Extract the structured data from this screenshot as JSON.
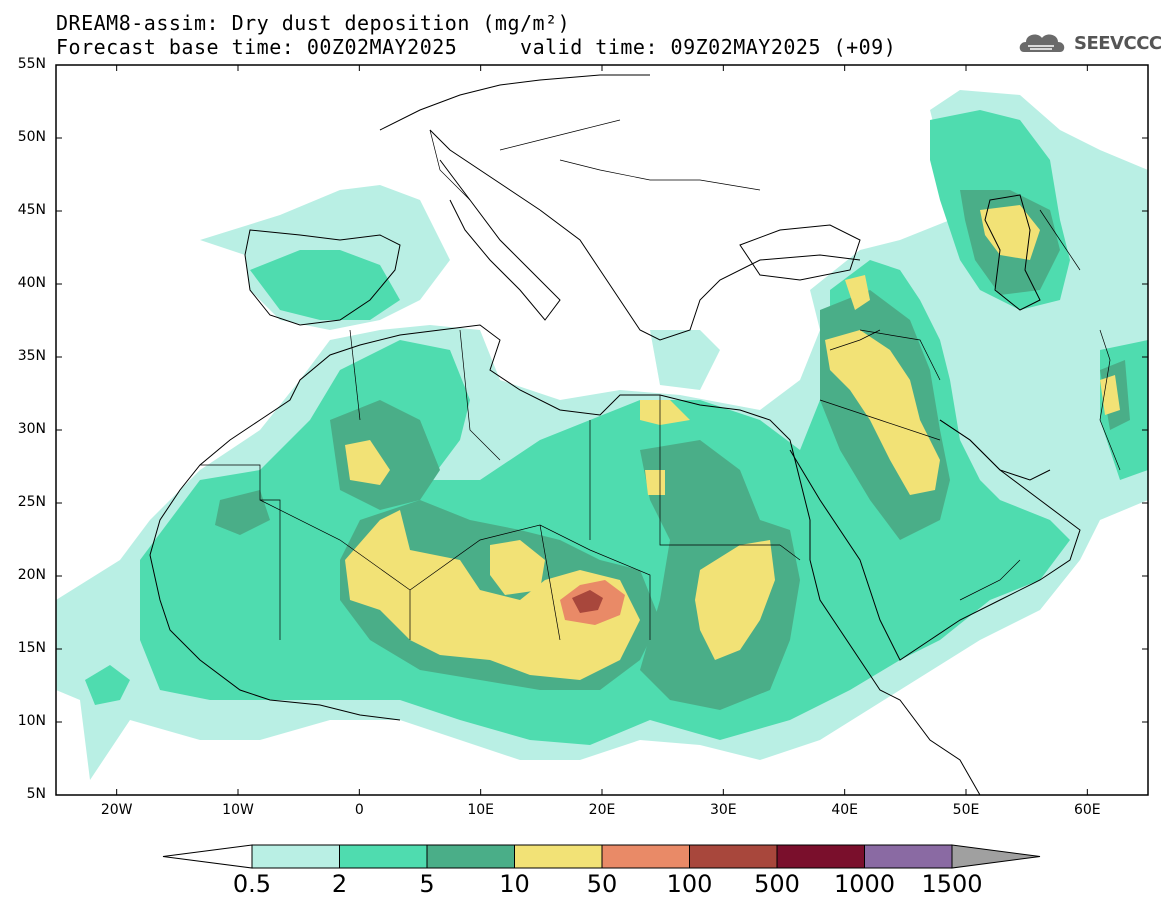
{
  "title": {
    "line1": "DREAM8-assim: Dry dust deposition (mg/m²)",
    "line2_base": "Forecast base time: 00Z02MAY2025",
    "line2_valid": "valid time: 09Z02MAY2025 (+09)"
  },
  "logo": {
    "text": "SEEVCCC",
    "icon": "cloud-icon"
  },
  "map": {
    "projection": "lat-lon",
    "lon_range": [
      -25,
      65
    ],
    "lat_range": [
      5,
      55
    ],
    "lat_ticks": [
      "55N",
      "50N",
      "45N",
      "40N",
      "35N",
      "30N",
      "25N",
      "20N",
      "15N",
      "10N",
      "5N"
    ],
    "lon_ticks": [
      "20W",
      "10W",
      "0",
      "10E",
      "20E",
      "30E",
      "40E",
      "50E",
      "60E"
    ]
  },
  "colorbar": {
    "labels": [
      "0.5",
      "2",
      "5",
      "10",
      "50",
      "100",
      "500",
      "1000",
      "1500"
    ],
    "colors": [
      "#b9efe4",
      "#4fdcaf",
      "#4aae88",
      "#f2e276",
      "#e98a67",
      "#a8473c",
      "#7a0f2c",
      "#8a6aa3",
      "#a0a0a0"
    ],
    "below_color": "#ffffff"
  }
}
